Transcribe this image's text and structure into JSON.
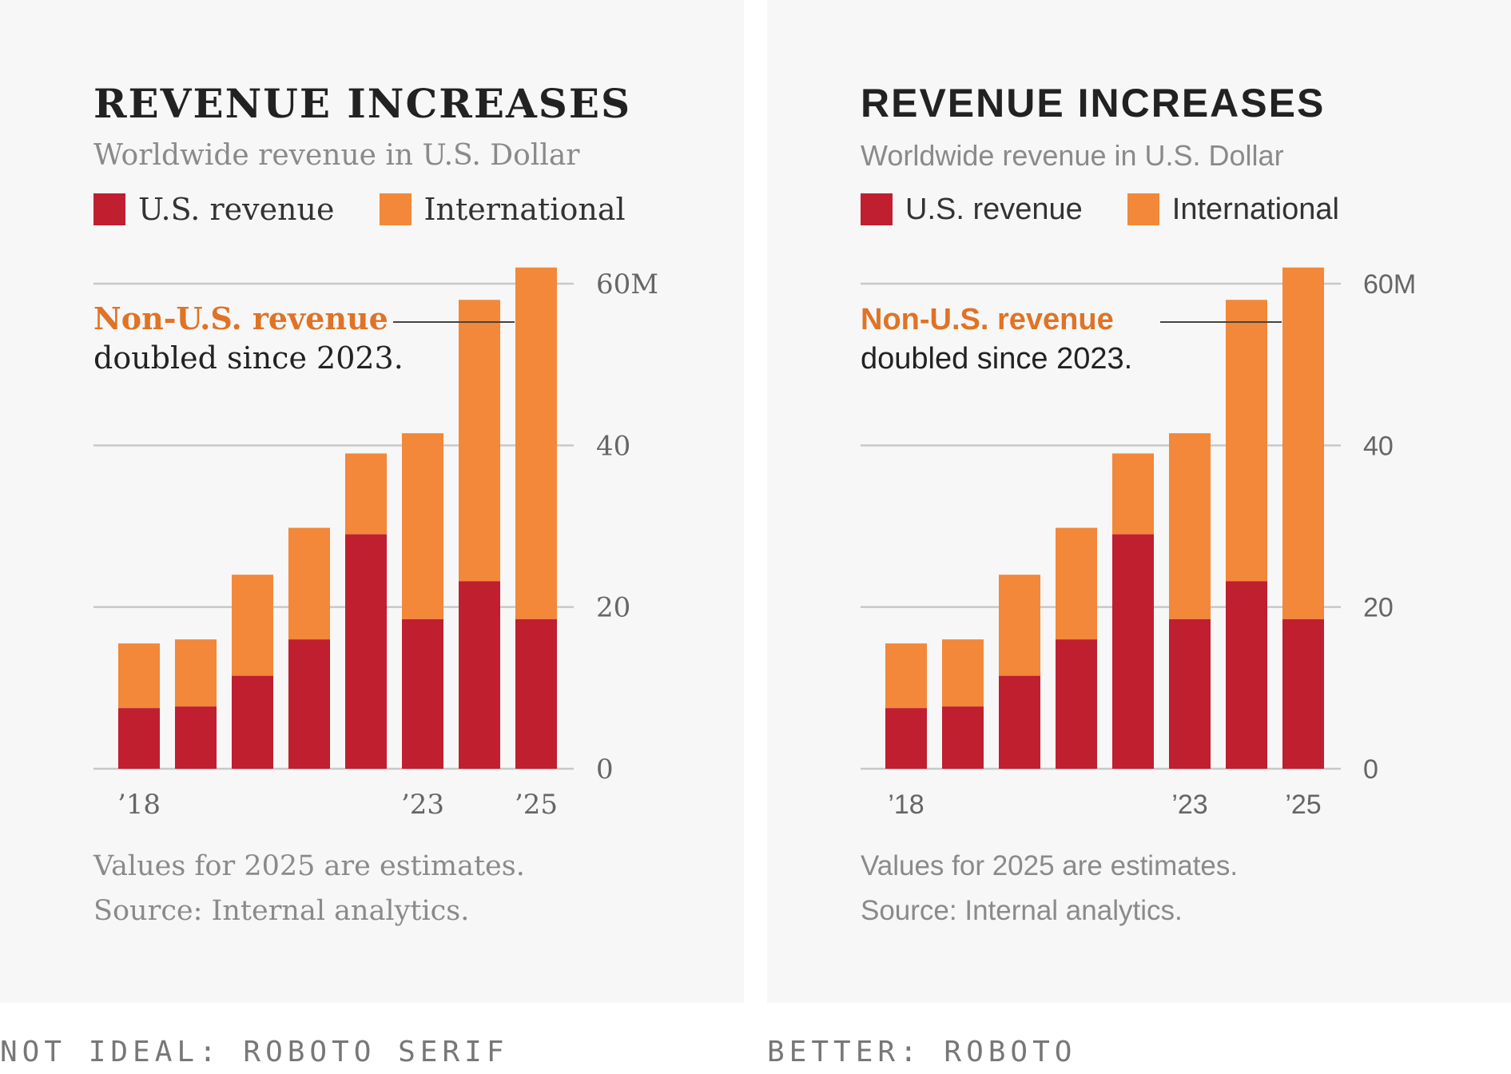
{
  "panels": [
    {
      "title": "REVENUE INCREASES",
      "subtitle": "Worldwide revenue in U.S. Dollar",
      "legend": [
        "U.S. revenue",
        "International"
      ],
      "annotation": {
        "highlight": "Non-U.S. revenue",
        "body": "doubled since 2023."
      },
      "footer": [
        "Values for 2025 are estimates.",
        "Source: Internal analytics."
      ],
      "caption": "NOT IDEAL: ROBOTO SERIF"
    },
    {
      "title": "REVENUE INCREASES",
      "subtitle": "Worldwide revenue in U.S. Dollar",
      "legend": [
        "U.S. revenue",
        "International"
      ],
      "annotation": {
        "highlight": "Non-U.S. revenue",
        "body": "doubled since 2023."
      },
      "footer": [
        "Values for 2025 are estimates.",
        "Source: Internal analytics."
      ],
      "caption": "BETTER: ROBOTO"
    }
  ],
  "colors": {
    "us": "#c01f2f",
    "international": "#f3873a",
    "annotation": "#e07326",
    "grid": "#c8c8c8"
  },
  "chart_data": [
    {
      "type": "bar",
      "stacked": true,
      "title": "REVENUE INCREASES",
      "subtitle": "Worldwide revenue in U.S. Dollar",
      "categories": [
        "2018",
        "2019",
        "2020",
        "2021",
        "2022",
        "2023",
        "2024",
        "2025"
      ],
      "x_tick_labels": [
        "’18",
        "",
        "",
        "",
        "",
        "’23",
        "",
        "’25"
      ],
      "series": [
        {
          "name": "U.S. revenue",
          "values": [
            7.5,
            7.7,
            11.5,
            16,
            29,
            18.5,
            23.2,
            18.5
          ]
        },
        {
          "name": "International",
          "values": [
            8,
            8.3,
            12.5,
            13.8,
            10,
            23,
            34.8,
            43.5
          ]
        }
      ],
      "y_ticks": [
        "0",
        "20",
        "40",
        "60M"
      ],
      "y_tick_values": [
        0,
        20,
        40,
        60
      ],
      "ylim": [
        0,
        60
      ],
      "y_axis_side": "right",
      "grid": true,
      "legend_position": "top-left"
    },
    {
      "type": "bar",
      "stacked": true,
      "title": "REVENUE INCREASES",
      "subtitle": "Worldwide revenue in U.S. Dollar",
      "categories": [
        "2018",
        "2019",
        "2020",
        "2021",
        "2022",
        "2023",
        "2024",
        "2025"
      ],
      "x_tick_labels": [
        "’18",
        "",
        "",
        "",
        "",
        "’23",
        "",
        "’25"
      ],
      "series": [
        {
          "name": "U.S. revenue",
          "values": [
            7.5,
            7.7,
            11.5,
            16,
            29,
            18.5,
            23.2,
            18.5
          ]
        },
        {
          "name": "International",
          "values": [
            8,
            8.3,
            12.5,
            13.8,
            10,
            23,
            34.8,
            43.5
          ]
        }
      ],
      "y_ticks": [
        "0",
        "20",
        "40",
        "60M"
      ],
      "y_tick_values": [
        0,
        20,
        40,
        60
      ],
      "ylim": [
        0,
        60
      ],
      "y_axis_side": "right",
      "grid": true,
      "legend_position": "top-left"
    }
  ]
}
